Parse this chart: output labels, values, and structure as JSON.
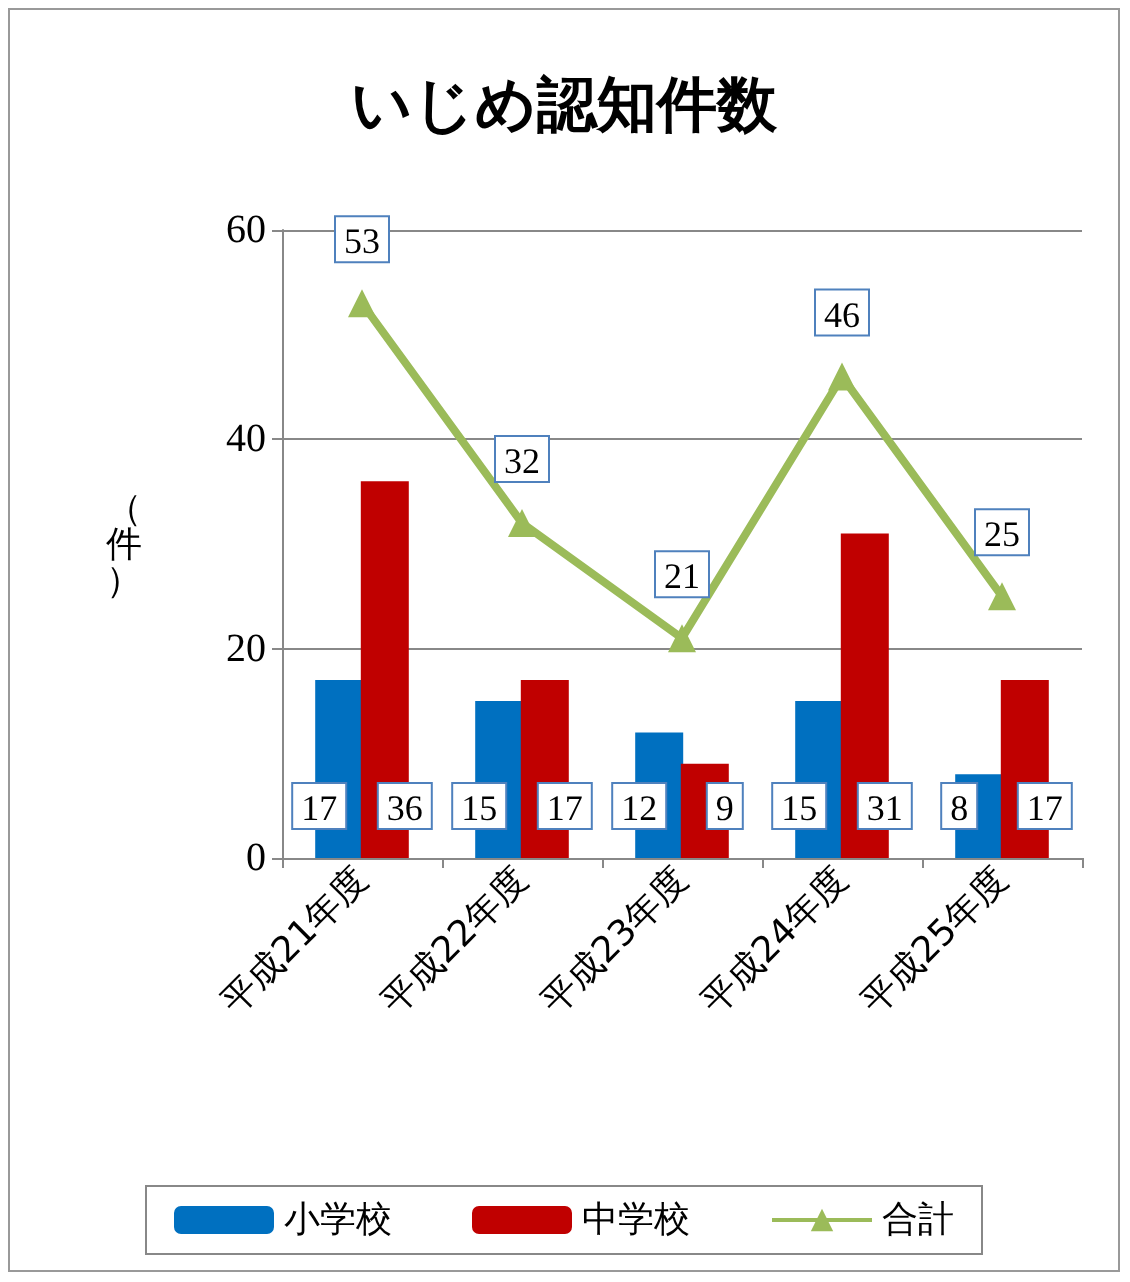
{
  "chart_data": {
    "type": "bar",
    "title": "いじめ認知件数",
    "ylabel": "（件）",
    "categories": [
      "平成21年度",
      "平成22年度",
      "平成23年度",
      "平成24年度",
      "平成25年度"
    ],
    "series": [
      {
        "name": "小学校",
        "color": "#0070c0",
        "values": [
          17,
          15,
          12,
          15,
          8
        ]
      },
      {
        "name": "中学校",
        "color": "#c00000",
        "values": [
          36,
          17,
          9,
          31,
          17
        ]
      },
      {
        "name": "合計",
        "type": "line",
        "color": "#9bbb59",
        "values": [
          53,
          32,
          21,
          46,
          25
        ],
        "marker": "triangle"
      }
    ],
    "ylim": [
      0,
      60
    ],
    "yticks": [
      0,
      20,
      40,
      60
    ],
    "grid": "y",
    "legend": "bottom",
    "data_labels": true
  }
}
